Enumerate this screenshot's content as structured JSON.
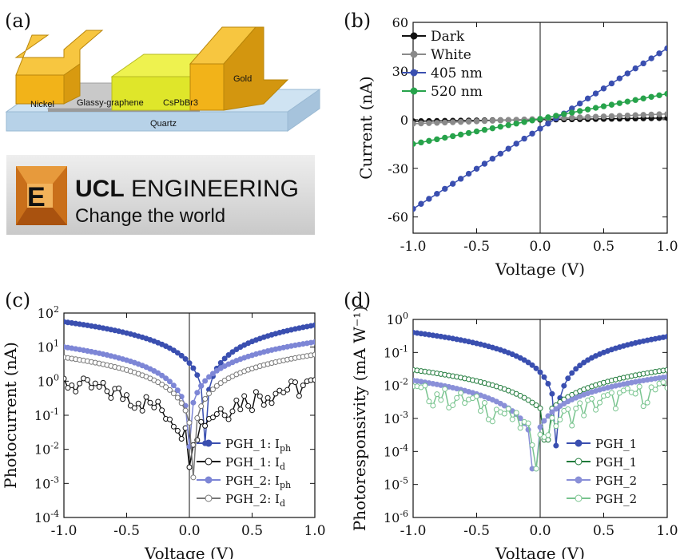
{
  "figure": {
    "panel_labels": [
      "(a)",
      "(b)",
      "(c)",
      "(d)"
    ]
  },
  "device": {
    "labels": [
      "Nickel",
      "Glassy-graphene",
      "CsPbBr3",
      "Gold",
      "Quartz"
    ],
    "colors": {
      "gold": "#f2b319",
      "perovskite": "#dfe62a",
      "graphene": "#c9c9c9",
      "quartz": "#cfe3f2"
    }
  },
  "logo": {
    "title_bold": "UCL",
    "title_rest": " ENGINEERING",
    "tagline": "Change the world"
  },
  "chart_data": [
    {
      "panel": "(b)",
      "type": "line",
      "xlabel": "Voltage (V)",
      "ylabel": "Current (nA)",
      "xlim": [
        -1.0,
        1.0
      ],
      "ylim": [
        -70,
        60
      ],
      "xticks": [
        "-1.0",
        "-0.5",
        "0.0",
        "0.5",
        "1.0"
      ],
      "yticks": [
        "-60",
        "-30",
        "0",
        "30",
        "60"
      ],
      "legend_position": "top-left",
      "series": [
        {
          "name": "Dark",
          "color": "#111111",
          "x": [
            -1.0,
            1.0
          ],
          "y": [
            -1.0,
            1.0
          ]
        },
        {
          "name": "White",
          "color": "#8a8a8a",
          "x": [
            -1.0,
            1.0
          ],
          "y": [
            -2.5,
            3.5
          ]
        },
        {
          "name": "405 nm",
          "color": "#3a4fb0",
          "x": [
            -1.0,
            1.0
          ],
          "y": [
            -55,
            44
          ]
        },
        {
          "name": "520 nm",
          "color": "#27a34b",
          "x": [
            -1.0,
            1.0
          ],
          "y": [
            -15,
            16
          ]
        }
      ]
    },
    {
      "panel": "(c)",
      "type": "line",
      "xlabel": "Voltage (V)",
      "ylabel": "Photocurrent (nA)",
      "yscale": "log",
      "xlim": [
        -1.0,
        1.0
      ],
      "ylim": [
        0.0001,
        100
      ],
      "xticks": [
        "-1.0",
        "-0.5",
        "0.0",
        "0.5",
        "1.0"
      ],
      "yticks": [
        {
          "base": "10",
          "exp": "2"
        },
        {
          "base": "10",
          "exp": "1"
        },
        {
          "base": "10",
          "exp": "0"
        },
        {
          "base": "10",
          "exp": "-1"
        },
        {
          "base": "10",
          "exp": "-2"
        },
        {
          "base": "10",
          "exp": "-3"
        },
        {
          "base": "10",
          "exp": "-4"
        }
      ],
      "legend_position": "bottom-right",
      "series": [
        {
          "name": "PGH_1: I",
          "sub": "ph",
          "color": "#3a4fb0",
          "v0": 0.13,
          "a": 55,
          "b": 44,
          "floor": 0.1,
          "noise": 0
        },
        {
          "name": "PGH_1: I",
          "sub": "d",
          "color": "#111111",
          "v0": 0.0,
          "a": 0.9,
          "b": 0.8,
          "floor": 0.02,
          "noise": 1
        },
        {
          "name": "PGH_2: I",
          "sub": "ph",
          "color": "#7d86d6",
          "v0": 0.0,
          "a": 10,
          "b": 14,
          "floor": 0.08,
          "noise": 0
        },
        {
          "name": "PGH_2: I",
          "sub": "d",
          "color": "#777777",
          "v0": 0.03,
          "a": 5,
          "b": 6,
          "floor": 0.01,
          "noise": 0
        }
      ]
    },
    {
      "panel": "(d)",
      "type": "line",
      "xlabel": "Voltage (V)",
      "ylabel": "Photoresponsivity (mA W⁻¹)",
      "yscale": "log",
      "xlim": [
        -1.0,
        1.0
      ],
      "ylim": [
        1e-06,
        1
      ],
      "xticks": [
        "-1.0",
        "-0.5",
        "0.0",
        "0.5",
        "1.0"
      ],
      "yticks": [
        {
          "base": "10",
          "exp": "0"
        },
        {
          "base": "10",
          "exp": "-1"
        },
        {
          "base": "10",
          "exp": "-2"
        },
        {
          "base": "10",
          "exp": "-3"
        },
        {
          "base": "10",
          "exp": "-4"
        },
        {
          "base": "10",
          "exp": "-5"
        },
        {
          "base": "10",
          "exp": "-6"
        }
      ],
      "legend_position": "bottom-right",
      "series": [
        {
          "name": "PGH_1",
          "color": "#3a4fb0",
          "v0": 0.13,
          "a": 0.4,
          "b": 0.3,
          "floor": 0.001,
          "noise": 0
        },
        {
          "name": "PGH_1",
          "color": "#1f7a3a",
          "v0": 0.05,
          "a": 0.028,
          "b": 0.028,
          "floor": 0.0015,
          "noise": 0
        },
        {
          "name": "PGH_2",
          "color": "#8a90d8",
          "v0": -0.05,
          "a": 0.014,
          "b": 0.018,
          "floor": 0.0002,
          "noise": 0
        },
        {
          "name": "PGH_2",
          "color": "#79c48f",
          "v0": -0.02,
          "a": 0.007,
          "b": 0.008,
          "floor": 0.0002,
          "noise": 1
        }
      ]
    }
  ]
}
